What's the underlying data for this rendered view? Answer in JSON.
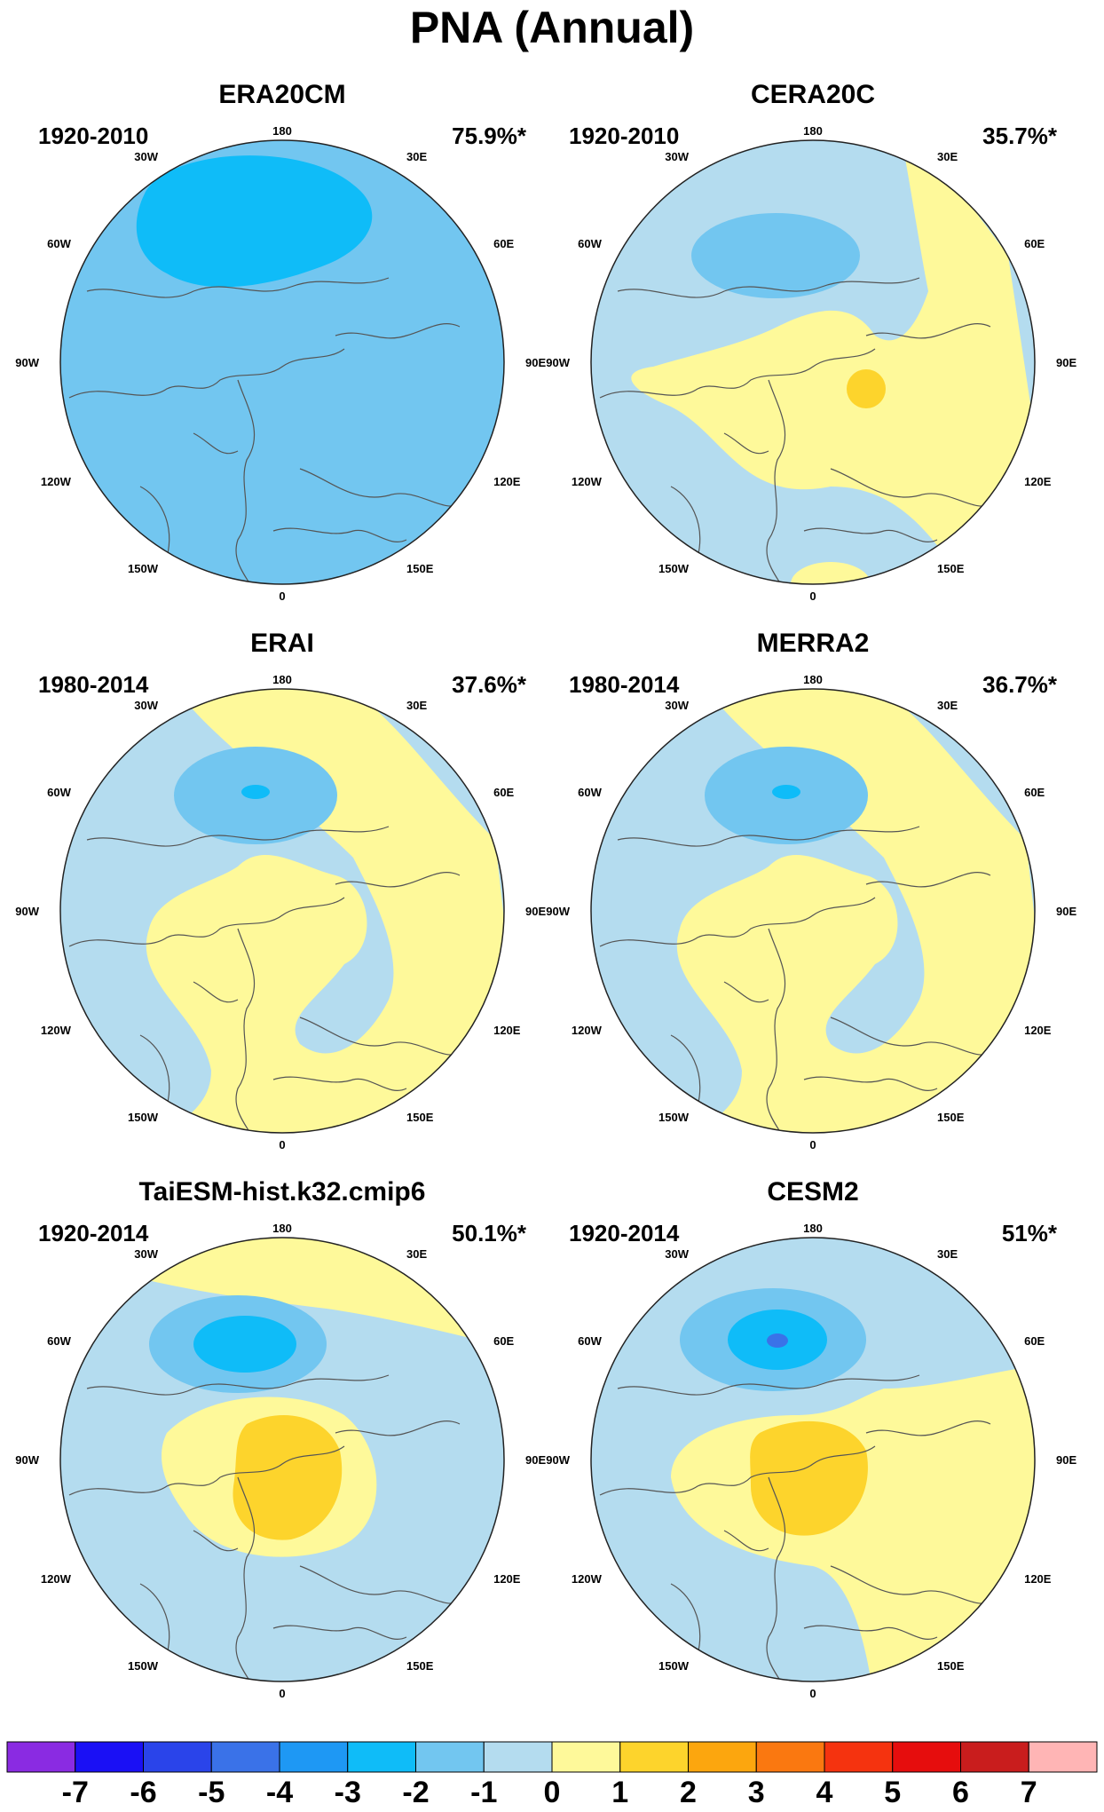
{
  "title": "PNA (Annual)",
  "panels": [
    {
      "name": "ERA20CM",
      "period": "1920-2010",
      "percent": "75.9%*"
    },
    {
      "name": "CERA20C",
      "period": "1920-2010",
      "percent": "35.7%*"
    },
    {
      "name": "ERAI",
      "period": "1980-2014",
      "percent": "37.6%*"
    },
    {
      "name": "MERRA2",
      "period": "1980-2014",
      "percent": "36.7%*"
    },
    {
      "name": "TaiESM-hist.k32.cmip6",
      "period": "1920-2014",
      "percent": "50.1%*"
    },
    {
      "name": "CESM2",
      "period": "1920-2014",
      "percent": "51%*"
    }
  ],
  "longitude_labels": {
    "top": "180",
    "bottom": "0",
    "left": [
      "150W",
      "120W",
      "90W",
      "60W",
      "30W"
    ],
    "right": [
      "150E",
      "120E",
      "90E",
      "60E",
      "30E"
    ]
  },
  "colorbar": {
    "labels": [
      "-7",
      "-6",
      "-5",
      "-4",
      "-3",
      "-2",
      "-1",
      "0",
      "1",
      "2",
      "3",
      "4",
      "5",
      "6",
      "7"
    ],
    "colors": [
      "#8a2be2",
      "#1a10f5",
      "#2a44ea",
      "#3a72e8",
      "#1e98f4",
      "#0fbcf8",
      "#72c6f0",
      "#b4dcef",
      "#fef99a",
      "#fdd42c",
      "#fca60e",
      "#fa7810",
      "#f5330f",
      "#e60d0d",
      "#c91d1d",
      "#ffb5b5"
    ]
  },
  "map_colors": {
    "neg3": "#0fbcf8",
    "neg2": "#72c6f0",
    "neg1": "#b4dcef",
    "pos1": "#fef99a",
    "pos2": "#fdd42c",
    "neg4": "#3a72e8"
  }
}
